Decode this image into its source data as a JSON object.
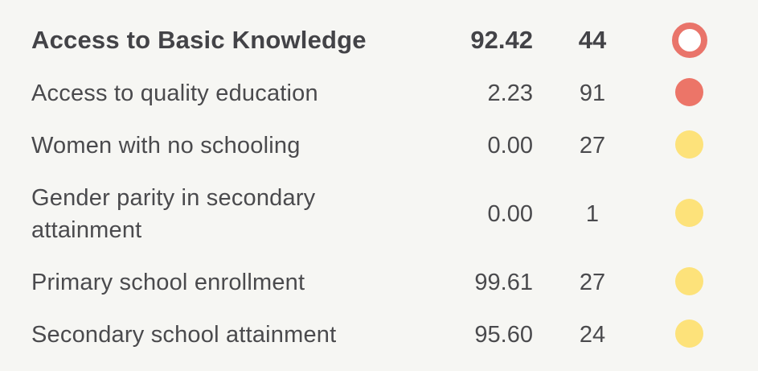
{
  "indicators": {
    "header": {
      "label": "Access to Basic Knowledge",
      "score": "92.42",
      "rank": "44",
      "status": "red-ring",
      "status_color": "#e9746a"
    },
    "rows": [
      {
        "label": "Access to quality education",
        "score": "2.23",
        "rank": "91",
        "status": "red",
        "status_color": "#ec7568"
      },
      {
        "label": "Women with no schooling",
        "score": "0.00",
        "rank": "27",
        "status": "yellow",
        "status_color": "#fde27a"
      },
      {
        "label_line1": "Gender parity in secondary",
        "label_line2": "attainment",
        "score": "0.00",
        "rank": "1",
        "status": "yellow",
        "status_color": "#fde27a"
      },
      {
        "label": "Primary school enrollment",
        "score": "99.61",
        "rank": "27",
        "status": "yellow",
        "status_color": "#fde27a"
      },
      {
        "label": "Secondary school attainment",
        "score": "95.60",
        "rank": "24",
        "status": "yellow",
        "status_color": "#fde27a"
      }
    ]
  }
}
